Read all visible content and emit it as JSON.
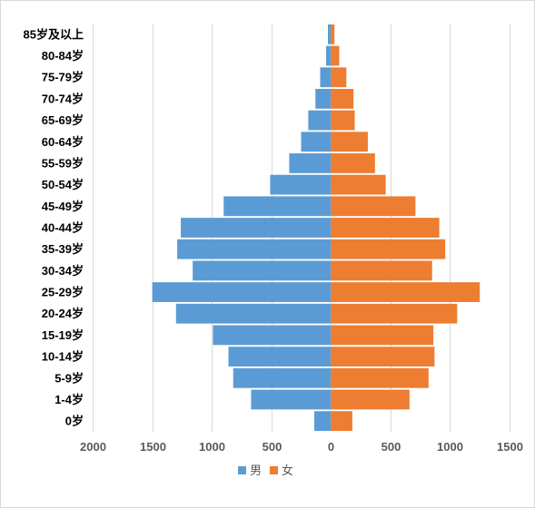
{
  "chart_data": {
    "type": "bar",
    "orientation": "horizontal",
    "layout": "population-pyramid",
    "categories": [
      "85岁及以上",
      "80-84岁",
      "75-79岁",
      "70-74岁",
      "65-69岁",
      "60-64岁",
      "55-59岁",
      "50-54岁",
      "45-49岁",
      "40-44岁",
      "35-39岁",
      "30-34岁",
      "25-29岁",
      "20-24岁",
      "15-19岁",
      "10-14岁",
      "5-9岁",
      "1-4岁",
      "0岁"
    ],
    "series": [
      {
        "name": "男",
        "color": "#5b9bd5",
        "side": "left",
        "values": [
          25,
          40,
          90,
          130,
          190,
          250,
          350,
          510,
          900,
          1260,
          1290,
          1160,
          1500,
          1300,
          990,
          860,
          820,
          670,
          140
        ]
      },
      {
        "name": "女",
        "color": "#ed7d31",
        "side": "right",
        "values": [
          30,
          70,
          130,
          190,
          200,
          310,
          370,
          460,
          710,
          910,
          960,
          850,
          1250,
          1060,
          860,
          870,
          820,
          660,
          180
        ]
      }
    ],
    "x_ticks": [
      {
        "value": -2000,
        "label": "2000"
      },
      {
        "value": -1500,
        "label": "1500"
      },
      {
        "value": -1000,
        "label": "1000"
      },
      {
        "value": -500,
        "label": "500"
      },
      {
        "value": 0,
        "label": "0"
      },
      {
        "value": 500,
        "label": "500"
      },
      {
        "value": 1000,
        "label": "1000"
      },
      {
        "value": 1500,
        "label": "1500"
      }
    ],
    "xlim": [
      -2000,
      1500
    ],
    "grid": true,
    "legend_position": "bottom",
    "title": "",
    "xlabel": "",
    "ylabel": ""
  }
}
